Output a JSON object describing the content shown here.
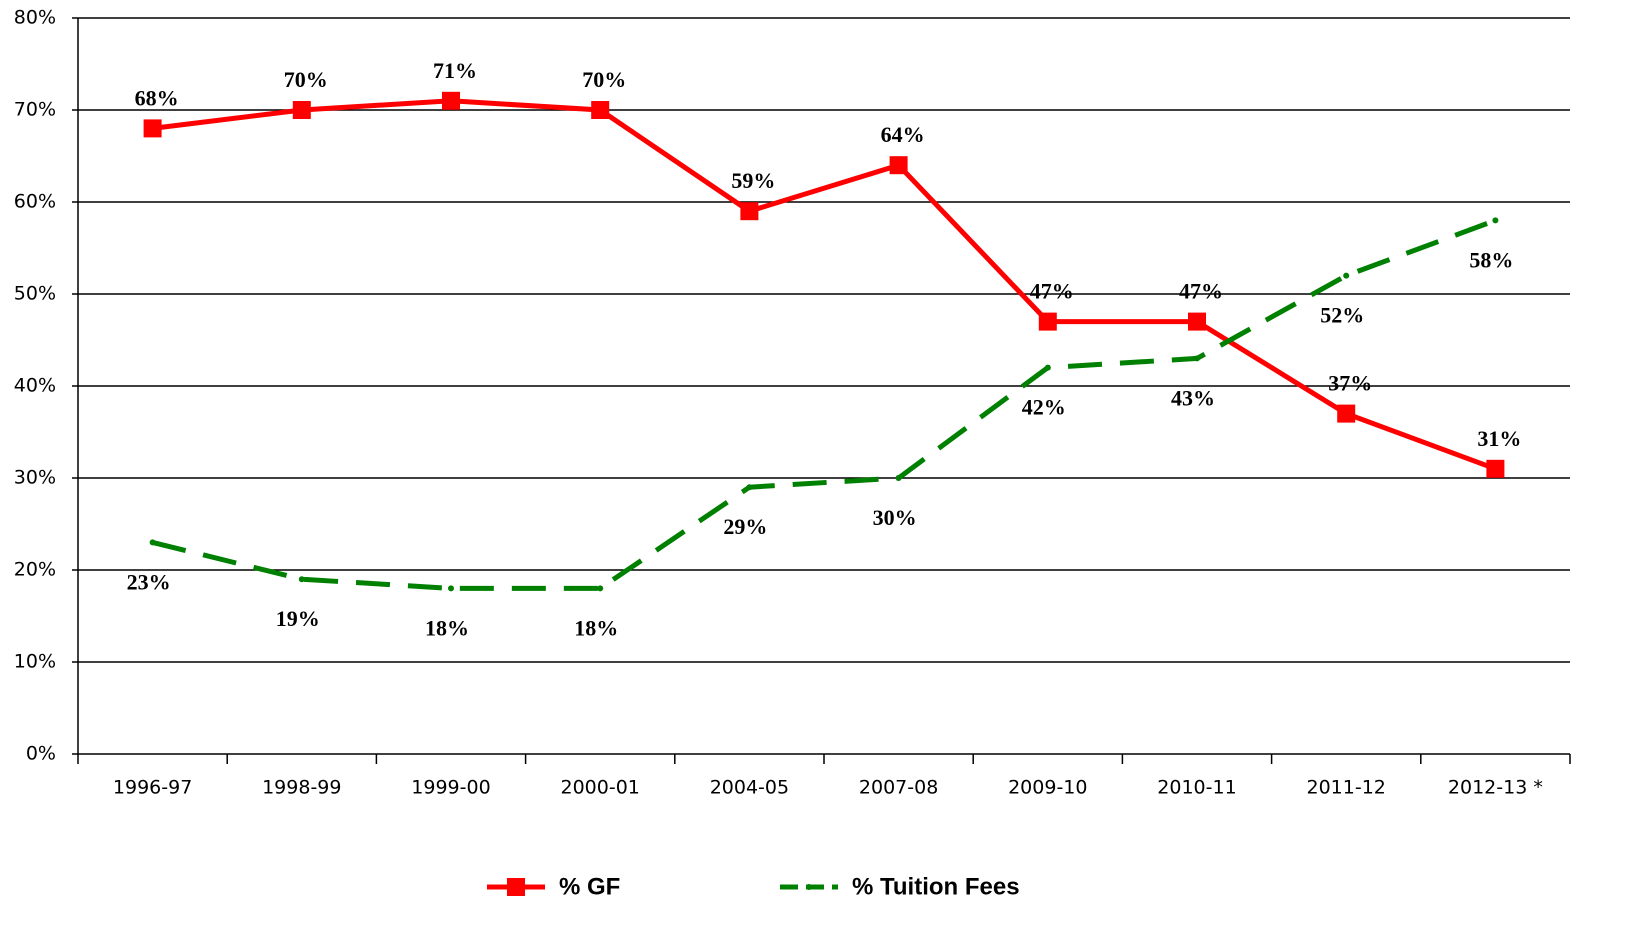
{
  "chart_data": {
    "type": "line",
    "categories": [
      "1996-97",
      "1998-99",
      "1999-00",
      "2000-01",
      "2004-05",
      "2007-08",
      "2009-10",
      "2010-11",
      "2011-12",
      "2012-13 *"
    ],
    "series": [
      {
        "name": "% GF",
        "color": "#ff0000",
        "marker": "square",
        "dashed": false,
        "values": [
          68,
          70,
          71,
          70,
          59,
          64,
          47,
          47,
          37,
          31
        ],
        "value_labels": [
          "68%",
          "70%",
          "71%",
          "70%",
          "59%",
          "64%",
          "47%",
          "47%",
          "37%",
          "31%"
        ]
      },
      {
        "name": "% Tuition Fees",
        "color": "#008000",
        "marker": "circle",
        "dashed": true,
        "values": [
          23,
          19,
          18,
          18,
          29,
          30,
          42,
          43,
          52,
          58
        ],
        "value_labels": [
          "23%",
          "19%",
          "18%",
          "18%",
          "29%",
          "30%",
          "42%",
          "43%",
          "52%",
          "58%"
        ]
      }
    ],
    "ylim": [
      0,
      80
    ],
    "yticks": [
      {
        "value": 0,
        "label": "0%"
      },
      {
        "value": 10,
        "label": "10%"
      },
      {
        "value": 20,
        "label": "20%"
      },
      {
        "value": 30,
        "label": "30%"
      },
      {
        "value": 40,
        "label": "40%"
      },
      {
        "value": 50,
        "label": "50%"
      },
      {
        "value": 60,
        "label": "60%"
      },
      {
        "value": 70,
        "label": "70%"
      },
      {
        "value": 80,
        "label": "80%"
      }
    ],
    "grid": true,
    "legend": "bottom"
  }
}
